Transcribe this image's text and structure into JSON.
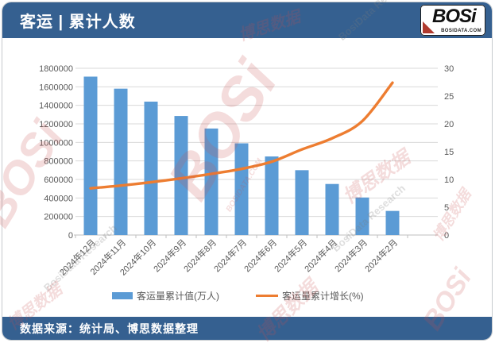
{
  "header": {
    "title": "客运 | 累计人数",
    "logo": {
      "brand": "BOSi",
      "domain": "BOSIDATA.COM"
    }
  },
  "footer": {
    "source": "数据来源：统计局、博思数据整理"
  },
  "watermarks": {
    "brand": "BOSi",
    "brand_cn": "博思数据",
    "research": "BosiData Research",
    "domain": "BOSIDATA.COM"
  },
  "colors": {
    "header_bar": "#356090",
    "bar": "#5B9BD5",
    "line": "#ED7D31",
    "grid": "#D9D9D9",
    "axis_line": "#BFBFBF",
    "axis_text": "#595959"
  },
  "chart_data": {
    "type": "combo-bar-line",
    "title": "客运 | 累计人数",
    "categories": [
      "2024年12月",
      "2024年11月",
      "2024年10月",
      "2024年9月",
      "2024年8月",
      "2024年7月",
      "2024年6月",
      "2024年5月",
      "2024年4月",
      "2024年3月",
      "2024年2月"
    ],
    "series": [
      {
        "name": "客运量累计值(万人)",
        "type": "bar",
        "axis": "left",
        "color": "#5B9BD5",
        "values": [
          1710000,
          1580000,
          1440000,
          1285000,
          1150000,
          990000,
          848000,
          700000,
          551000,
          405000,
          260000
        ]
      },
      {
        "name": "客运量累计增长(%)",
        "type": "line",
        "axis": "right",
        "color": "#ED7D31",
        "values": [
          8.4,
          8.9,
          9.5,
          10.2,
          11.0,
          11.9,
          13.2,
          15.4,
          17.4,
          20.5,
          27.4
        ]
      }
    ],
    "left_axis": {
      "min": 0,
      "max": 1800000,
      "step": 200000,
      "ticks": [
        "0",
        "200000",
        "400000",
        "600000",
        "800000",
        "1000000",
        "1200000",
        "1400000",
        "1600000",
        "1800000"
      ]
    },
    "right_axis": {
      "min": 0,
      "max": 30,
      "step": 5,
      "ticks": [
        "0",
        "5",
        "10",
        "15",
        "20",
        "25",
        "30"
      ]
    },
    "grid": true,
    "legend_position": "bottom",
    "source_note": "数据来源：统计局、博思数据整理"
  }
}
